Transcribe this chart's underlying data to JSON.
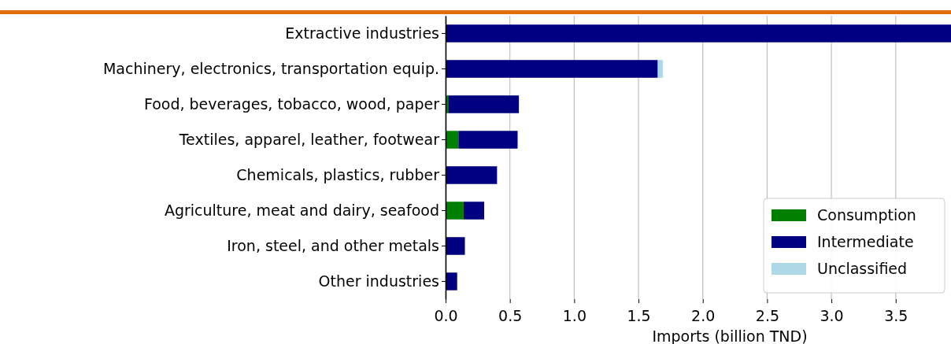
{
  "chart_data": {
    "type": "bar",
    "orientation": "horizontal",
    "stacked": true,
    "xlabel": "Imports (billion TND)",
    "categories": [
      "Extractive industries",
      "Machinery, electronics, transportation equip.",
      "Food, beverages, tobacco, wood, paper",
      "Textiles, apparel, leather, footwear",
      "Chemicals, plastics, rubber",
      "Agriculture, meat and dairy, seafood",
      "Iron, steel, and other metals",
      "Other industries"
    ],
    "series": [
      {
        "name": "Consumption",
        "color": "#008000",
        "values": [
          0,
          0,
          0.02,
          0.1,
          0,
          0.14,
          0,
          0
        ]
      },
      {
        "name": "Intermediate",
        "color": "#000080",
        "values": [
          3.93,
          1.65,
          0.55,
          0.46,
          0.4,
          0.16,
          0.15,
          0.09
        ]
      },
      {
        "name": "Unclassified",
        "color": "#add8e6",
        "values": [
          0,
          0.04,
          0,
          0,
          0,
          0,
          0,
          0
        ]
      }
    ],
    "xlim": [
      0,
      3.93
    ],
    "xticks": [
      {
        "value": 0,
        "label": "0.0"
      },
      {
        "value": 0.5,
        "label": "0.5"
      },
      {
        "value": 1,
        "label": "1.0"
      },
      {
        "value": 1.5,
        "label": "1.5"
      },
      {
        "value": 2,
        "label": "2.0"
      },
      {
        "value": 2.5,
        "label": "2.5"
      },
      {
        "value": 3,
        "label": "3.0"
      },
      {
        "value": 3.5,
        "label": "3.5"
      }
    ],
    "grid": "x",
    "legend": "bottom right"
  }
}
